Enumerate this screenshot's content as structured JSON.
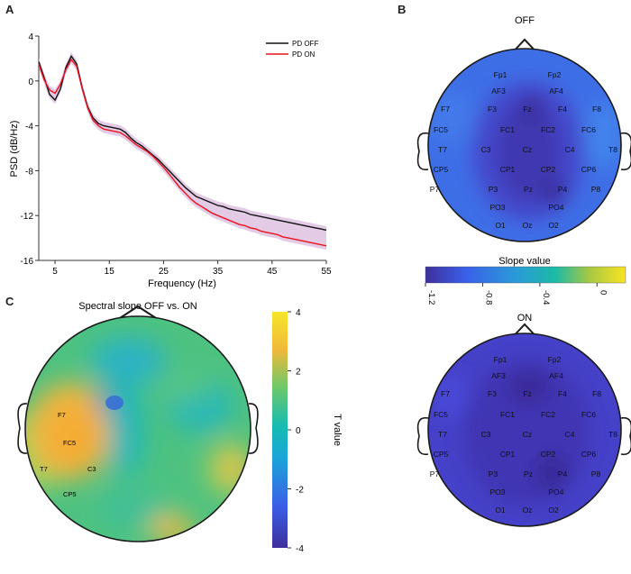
{
  "panels": {
    "a": {
      "letter": "A"
    },
    "b": {
      "letter": "B",
      "off_title": "OFF",
      "on_title": "ON"
    },
    "c": {
      "letter": "C"
    }
  },
  "colors": {
    "pd_off": "#111111",
    "pd_on": "#e8141c",
    "band": "#d9b8dc",
    "head_stroke": "#1a1a1a"
  },
  "chart_data": [
    {
      "type": "line",
      "title": "",
      "xlabel": "Frequency (Hz)",
      "ylabel": "PSD (dB/Hz)",
      "xlim": [
        2,
        55
      ],
      "ylim": [
        -16,
        4
      ],
      "xticks": [
        5,
        15,
        25,
        35,
        45,
        55
      ],
      "yticks": [
        4,
        0,
        -4,
        -8,
        -12,
        -16
      ],
      "legend_position": "top-right",
      "x": [
        2,
        3,
        4,
        5,
        6,
        7,
        8,
        9,
        10,
        11,
        12,
        13,
        14,
        15,
        16,
        17,
        18,
        19,
        20,
        21,
        22,
        23,
        24,
        25,
        26,
        27,
        28,
        29,
        30,
        31,
        32,
        33,
        34,
        35,
        36,
        37,
        38,
        39,
        40,
        41,
        42,
        43,
        44,
        45,
        46,
        47,
        48,
        49,
        50,
        51,
        52,
        53,
        54,
        55
      ],
      "series": [
        {
          "name": "PD OFF",
          "values": [
            1.7,
            0.3,
            -1.2,
            -1.7,
            -0.7,
            1.2,
            2.2,
            1.5,
            -0.6,
            -2.3,
            -3.3,
            -3.8,
            -4.0,
            -4.1,
            -4.2,
            -4.3,
            -4.6,
            -5.1,
            -5.5,
            -5.8,
            -6.2,
            -6.6,
            -7.0,
            -7.5,
            -8.0,
            -8.5,
            -9.0,
            -9.5,
            -9.9,
            -10.3,
            -10.5,
            -10.7,
            -10.9,
            -11.1,
            -11.2,
            -11.4,
            -11.5,
            -11.6,
            -11.7,
            -11.9,
            -12.0,
            -12.1,
            -12.2,
            -12.3,
            -12.4,
            -12.5,
            -12.6,
            -12.7,
            -12.8,
            -12.9,
            -13.0,
            -13.1,
            -13.2,
            -13.3
          ]
        },
        {
          "name": "PD ON",
          "values": [
            1.5,
            0.1,
            -0.8,
            -1.1,
            -0.3,
            1.0,
            1.9,
            1.3,
            -0.7,
            -2.4,
            -3.5,
            -4.0,
            -4.3,
            -4.4,
            -4.5,
            -4.6,
            -4.9,
            -5.3,
            -5.7,
            -6.0,
            -6.3,
            -6.7,
            -7.2,
            -7.7,
            -8.3,
            -8.9,
            -9.5,
            -10.0,
            -10.5,
            -10.9,
            -11.2,
            -11.5,
            -11.8,
            -12.0,
            -12.2,
            -12.4,
            -12.6,
            -12.8,
            -12.9,
            -13.1,
            -13.2,
            -13.4,
            -13.5,
            -13.6,
            -13.7,
            -13.9,
            -14.0,
            -14.1,
            -14.2,
            -14.3,
            -14.4,
            -14.5,
            -14.6,
            -14.7
          ]
        }
      ]
    },
    {
      "type": "heatmap",
      "title": "Spectral slope OFF vs. ON",
      "colorbar_label": "T value",
      "colorbar_range": [
        -4,
        4
      ],
      "colorbar_ticks": [
        4,
        2,
        0,
        -2,
        -4
      ],
      "labeled_electrodes": [
        "F7",
        "FC5",
        "T7",
        "C3",
        "CP5"
      ]
    },
    {
      "type": "heatmap",
      "title": "OFF / ON",
      "colorbar_label": "Slope value",
      "colorbar_range": [
        -1.2,
        0.2
      ],
      "colorbar_ticks": [
        "-1.2",
        "-0.8",
        "-0.4",
        "0"
      ],
      "electrodes": [
        [
          "Fp1",
          "Fp2"
        ],
        [
          "AF3",
          "AF4"
        ],
        [
          "F7",
          "F3",
          "Fz",
          "F4",
          "F8"
        ],
        [
          "FC5",
          "FC1",
          "FC2",
          "FC6"
        ],
        [
          "T7",
          "C3",
          "Cz",
          "C4",
          "T8"
        ],
        [
          "CP5",
          "CP1",
          "CP2",
          "CP6"
        ],
        [
          "P7",
          "P3",
          "Pz",
          "P4",
          "P8"
        ],
        [
          "PO3",
          "PO4"
        ],
        [
          "O1",
          "Oz",
          "O2"
        ]
      ]
    }
  ]
}
